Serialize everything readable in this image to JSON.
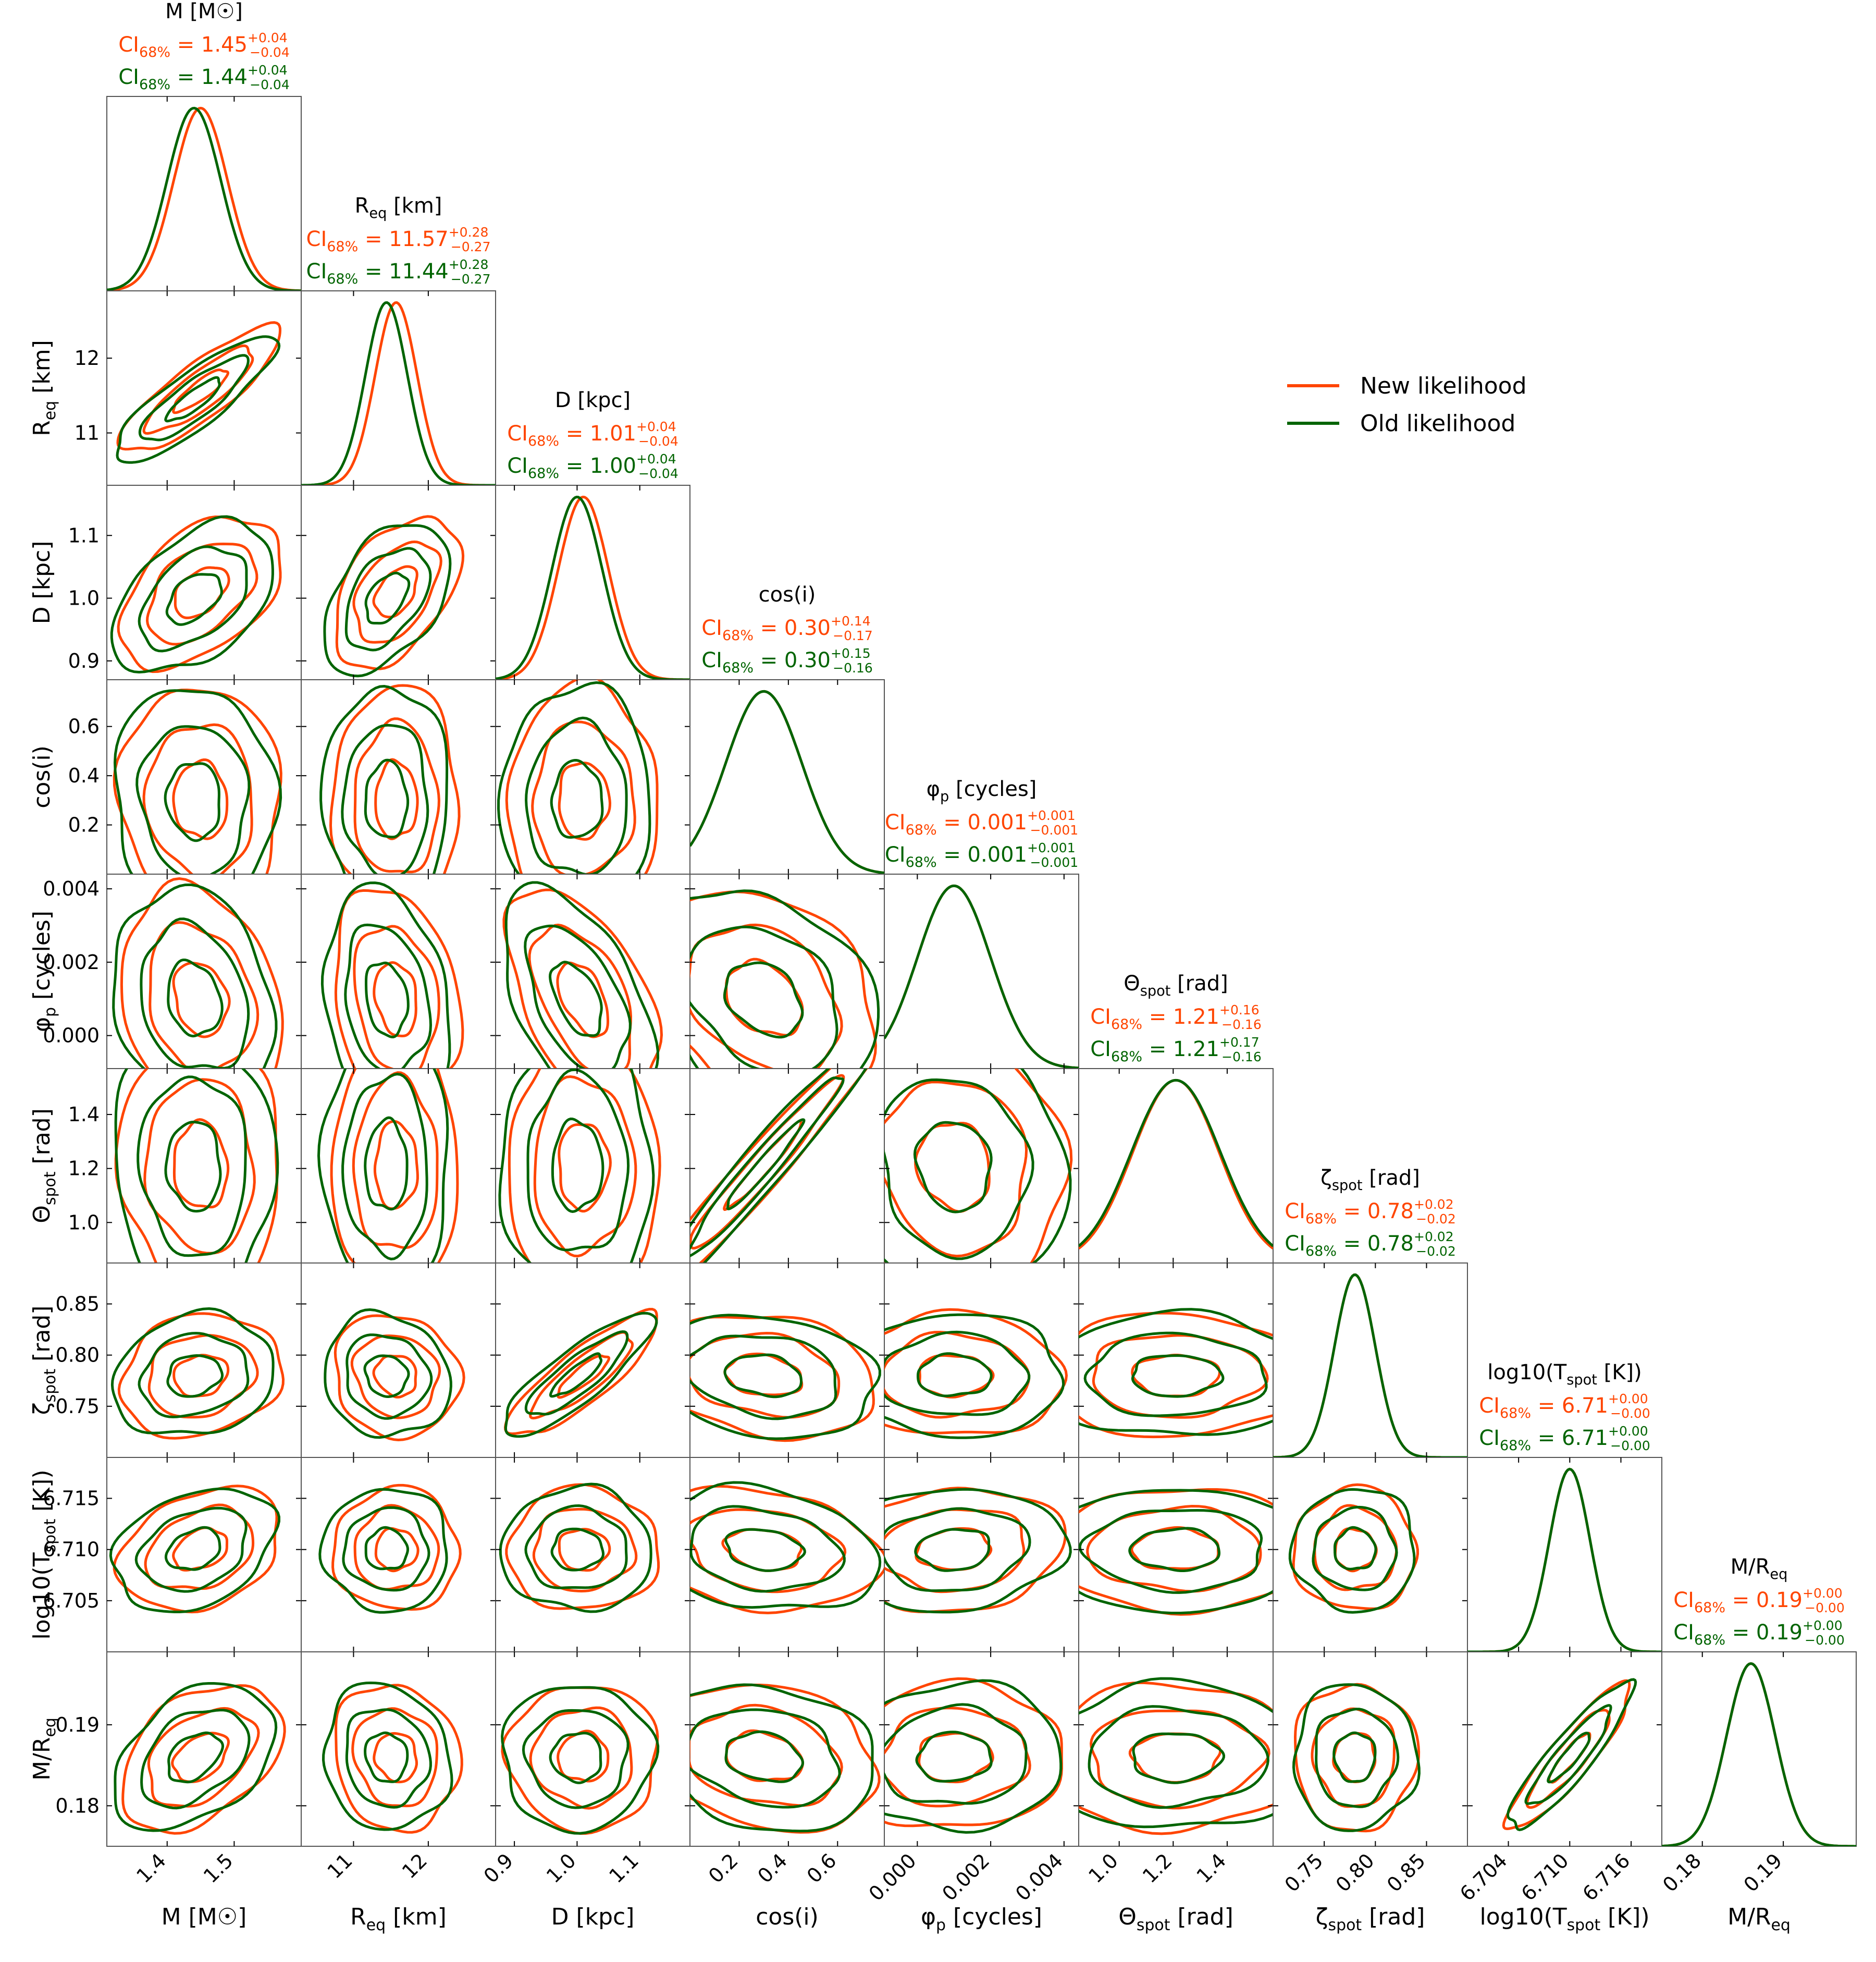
{
  "chart_data": {
    "type": "corner",
    "legend": {
      "placement": "upper-right",
      "entries": [
        {
          "label": "New likelihood",
          "color": "#ff4500"
        },
        {
          "label": "Old likelihood",
          "color": "#006400"
        }
      ]
    },
    "ci_prefix": "CI",
    "ci_subscript": "68%",
    "parameters": [
      {
        "key": "M",
        "label": "M [M☉]",
        "range": [
          1.31,
          1.6
        ],
        "ticks": [
          {
            "v": 1.4,
            "t": "1.4"
          },
          {
            "v": 1.5,
            "t": "1.5"
          }
        ],
        "new": {
          "mean": 1.45,
          "sd": 0.04,
          "ci": "1.45",
          "plus": "+0.04",
          "minus": "−0.04"
        },
        "old": {
          "mean": 1.44,
          "sd": 0.04,
          "ci": "1.44",
          "plus": "+0.04",
          "minus": "−0.04"
        }
      },
      {
        "key": "Req",
        "label": "R_eq [km]",
        "range": [
          10.3,
          12.9
        ],
        "ticks": [
          {
            "v": 11,
            "t": "11"
          },
          {
            "v": 12,
            "t": "12"
          }
        ],
        "new": {
          "mean": 11.57,
          "sd": 0.28,
          "ci": "11.57",
          "plus": "+0.28",
          "minus": "−0.27"
        },
        "old": {
          "mean": 11.44,
          "sd": 0.28,
          "ci": "11.44",
          "plus": "+0.28",
          "minus": "−0.27"
        }
      },
      {
        "key": "D",
        "label": "D [kpc]",
        "range": [
          0.87,
          1.18
        ],
        "ticks": [
          {
            "v": 0.9,
            "t": "0.9"
          },
          {
            "v": 1.0,
            "t": "1.0"
          },
          {
            "v": 1.1,
            "t": "1.1"
          }
        ],
        "new": {
          "mean": 1.01,
          "sd": 0.04,
          "ci": "1.01",
          "plus": "+0.04",
          "minus": "−0.04"
        },
        "old": {
          "mean": 1.0,
          "sd": 0.04,
          "ci": "1.00",
          "plus": "+0.04",
          "minus": "−0.04"
        }
      },
      {
        "key": "cosi",
        "label": "cos(i)",
        "range": [
          0.0,
          0.79
        ],
        "ticks": [
          {
            "v": 0.2,
            "t": "0.2"
          },
          {
            "v": 0.4,
            "t": "0.4"
          },
          {
            "v": 0.6,
            "t": "0.6"
          }
        ],
        "new": {
          "mean": 0.3,
          "sd": 0.155,
          "ci": "0.30",
          "plus": "+0.14",
          "minus": "−0.17"
        },
        "old": {
          "mean": 0.3,
          "sd": 0.155,
          "ci": "0.30",
          "plus": "+0.15",
          "minus": "−0.16"
        }
      },
      {
        "key": "phi",
        "label": "φ_p [cycles]",
        "range": [
          -0.0009,
          0.0044
        ],
        "ticks": [
          {
            "v": 0.0,
            "t": "0.000"
          },
          {
            "v": 0.002,
            "t": "0.002"
          },
          {
            "v": 0.004,
            "t": "0.004"
          }
        ],
        "new": {
          "mean": 0.001,
          "sd": 0.001,
          "ci": "0.001",
          "plus": "+0.001",
          "minus": "−0.001"
        },
        "old": {
          "mean": 0.001,
          "sd": 0.001,
          "ci": "0.001",
          "plus": "+0.001",
          "minus": "−0.001"
        }
      },
      {
        "key": "theta",
        "label": "Θ_spot [rad]",
        "range": [
          0.85,
          1.57
        ],
        "ticks": [
          {
            "v": 1.0,
            "t": "1.0"
          },
          {
            "v": 1.2,
            "t": "1.2"
          },
          {
            "v": 1.4,
            "t": "1.4"
          }
        ],
        "new": {
          "mean": 1.21,
          "sd": 0.16,
          "ci": "1.21",
          "plus": "+0.16",
          "minus": "−0.16"
        },
        "old": {
          "mean": 1.21,
          "sd": 0.165,
          "ci": "1.21",
          "plus": "+0.17",
          "minus": "−0.16"
        }
      },
      {
        "key": "zeta",
        "label": "ζ_spot [rad]",
        "range": [
          0.7,
          0.89
        ],
        "ticks": [
          {
            "v": 0.75,
            "t": "0.75"
          },
          {
            "v": 0.8,
            "t": "0.80"
          },
          {
            "v": 0.85,
            "t": "0.85"
          }
        ],
        "new": {
          "mean": 0.78,
          "sd": 0.02,
          "ci": "0.78",
          "plus": "+0.02",
          "minus": "−0.02"
        },
        "old": {
          "mean": 0.78,
          "sd": 0.02,
          "ci": "0.78",
          "plus": "+0.02",
          "minus": "−0.02"
        }
      },
      {
        "key": "T",
        "label": "log10(T_spot [K])",
        "range": [
          6.7,
          6.719
        ],
        "ticks": [
          {
            "v": 6.705,
            "t": "6.705"
          },
          {
            "v": 6.71,
            "t": "6.710"
          },
          {
            "v": 6.715,
            "t": "6.715"
          }
        ],
        "xticks": [
          {
            "v": 6.704,
            "t": "6.704"
          },
          {
            "v": 6.71,
            "t": "6.710"
          },
          {
            "v": 6.716,
            "t": "6.716"
          }
        ],
        "new": {
          "mean": 6.71,
          "sd": 0.002,
          "ci": "6.71",
          "plus": "+0.00",
          "minus": "−0.00"
        },
        "old": {
          "mean": 6.71,
          "sd": 0.002,
          "ci": "6.71",
          "plus": "+0.00",
          "minus": "−0.00"
        }
      },
      {
        "key": "MR",
        "label": "M/R_eq",
        "range": [
          0.175,
          0.199
        ],
        "ticks": [
          {
            "v": 0.18,
            "t": "0.18"
          },
          {
            "v": 0.19,
            "t": "0.19"
          }
        ],
        "new": {
          "mean": 0.186,
          "sd": 0.003,
          "ci": "0.19",
          "plus": "+0.00",
          "minus": "−0.00"
        },
        "old": {
          "mean": 0.186,
          "sd": 0.003,
          "ci": "0.19",
          "plus": "+0.00",
          "minus": "−0.00"
        }
      }
    ],
    "correlations": [
      {
        "i": 1,
        "j": 0,
        "r": 0.85
      },
      {
        "i": 2,
        "j": 0,
        "r": 0.45
      },
      {
        "i": 2,
        "j": 1,
        "r": 0.45
      },
      {
        "i": 3,
        "j": 0,
        "r": -0.05
      },
      {
        "i": 3,
        "j": 1,
        "r": 0.0
      },
      {
        "i": 3,
        "j": 2,
        "r": 0.0
      },
      {
        "i": 4,
        "j": 0,
        "r": -0.2
      },
      {
        "i": 4,
        "j": 1,
        "r": -0.2
      },
      {
        "i": 4,
        "j": 2,
        "r": -0.5
      },
      {
        "i": 4,
        "j": 3,
        "r": -0.3
      },
      {
        "i": 5,
        "j": 0,
        "r": -0.05
      },
      {
        "i": 5,
        "j": 1,
        "r": 0.0
      },
      {
        "i": 5,
        "j": 2,
        "r": 0.0
      },
      {
        "i": 5,
        "j": 3,
        "r": 0.97
      },
      {
        "i": 5,
        "j": 4,
        "r": -0.1
      },
      {
        "i": 6,
        "j": 0,
        "r": 0.15
      },
      {
        "i": 6,
        "j": 1,
        "r": -0.1
      },
      {
        "i": 6,
        "j": 2,
        "r": 0.85
      },
      {
        "i": 6,
        "j": 3,
        "r": -0.2
      },
      {
        "i": 6,
        "j": 4,
        "r": 0.0
      },
      {
        "i": 6,
        "j": 5,
        "r": 0.0
      },
      {
        "i": 7,
        "j": 0,
        "r": 0.3
      },
      {
        "i": 7,
        "j": 1,
        "r": 0.0
      },
      {
        "i": 7,
        "j": 2,
        "r": 0.0
      },
      {
        "i": 7,
        "j": 3,
        "r": -0.2
      },
      {
        "i": 7,
        "j": 4,
        "r": 0.1
      },
      {
        "i": 7,
        "j": 5,
        "r": 0.0
      },
      {
        "i": 7,
        "j": 6,
        "r": 0.0
      },
      {
        "i": 8,
        "j": 0,
        "r": 0.4
      },
      {
        "i": 8,
        "j": 1,
        "r": -0.1
      },
      {
        "i": 8,
        "j": 2,
        "r": 0.0
      },
      {
        "i": 8,
        "j": 3,
        "r": -0.2
      },
      {
        "i": 8,
        "j": 4,
        "r": 0.05
      },
      {
        "i": 8,
        "j": 5,
        "r": 0.0
      },
      {
        "i": 8,
        "j": 6,
        "r": 0.0
      },
      {
        "i": 8,
        "j": 7,
        "r": 0.9
      }
    ],
    "contour_levels_sigma": [
      1,
      2,
      3
    ]
  }
}
